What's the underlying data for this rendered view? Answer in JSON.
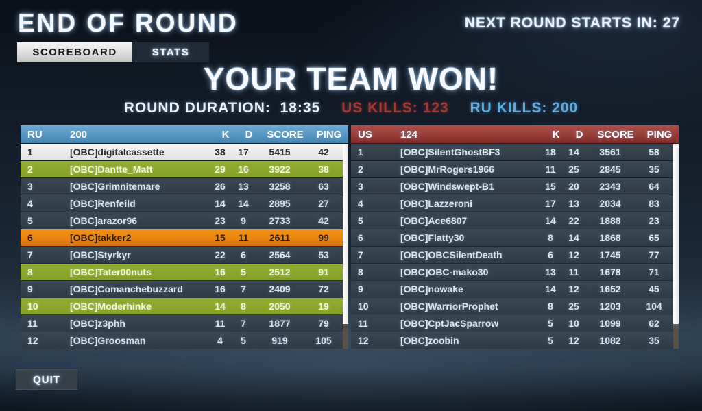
{
  "header": {
    "title": "END OF ROUND",
    "countdown_label": "NEXT ROUND STARTS IN:",
    "countdown_value": "27"
  },
  "tabs": [
    {
      "label": "SCOREBOARD",
      "active": true
    },
    {
      "label": "STATS",
      "active": false
    }
  ],
  "result": {
    "headline": "YOUR TEAM WON!",
    "duration_label": "ROUND DURATION:",
    "duration_value": "18:35",
    "us_kills_label": "US KILLS:",
    "us_kills_value": "123",
    "ru_kills_label": "RU KILLS:",
    "ru_kills_value": "200"
  },
  "colors": {
    "ru_accent": "#4f9acd",
    "ru_light": "#5cabdf",
    "us_accent": "#a33630",
    "green_row": "#94ac32",
    "orange_row": "#e8830f"
  },
  "tables": [
    {
      "team": "RU",
      "tickets": "200",
      "columns": [
        "K",
        "D",
        "SCORE",
        "PING"
      ],
      "rows": [
        {
          "rank": "1",
          "name": "[OBC]digitalcassette",
          "k": "38",
          "d": "17",
          "score": "5415",
          "ping": "42",
          "highlight": "white"
        },
        {
          "rank": "2",
          "name": "[OBC]Dantte_Matt",
          "k": "29",
          "d": "16",
          "score": "3922",
          "ping": "38",
          "highlight": "green"
        },
        {
          "rank": "3",
          "name": "[OBC]Grimnitemare",
          "k": "26",
          "d": "13",
          "score": "3258",
          "ping": "63",
          "highlight": "none"
        },
        {
          "rank": "4",
          "name": "[OBC]Renfeild",
          "k": "14",
          "d": "14",
          "score": "2895",
          "ping": "27",
          "highlight": "none"
        },
        {
          "rank": "5",
          "name": "[OBC]arazor96",
          "k": "23",
          "d": "9",
          "score": "2733",
          "ping": "42",
          "highlight": "none"
        },
        {
          "rank": "6",
          "name": "[OBC]takker2",
          "k": "15",
          "d": "11",
          "score": "2611",
          "ping": "99",
          "highlight": "orange"
        },
        {
          "rank": "7",
          "name": "[OBC]Styrkyr",
          "k": "22",
          "d": "6",
          "score": "2564",
          "ping": "53",
          "highlight": "none"
        },
        {
          "rank": "8",
          "name": "[OBC]Tater00nuts",
          "k": "16",
          "d": "5",
          "score": "2512",
          "ping": "91",
          "highlight": "green"
        },
        {
          "rank": "9",
          "name": "[OBC]Comanchebuzzard",
          "k": "16",
          "d": "7",
          "score": "2409",
          "ping": "72",
          "highlight": "none"
        },
        {
          "rank": "10",
          "name": "[OBC]Moderhinke",
          "k": "14",
          "d": "8",
          "score": "2050",
          "ping": "19",
          "highlight": "green"
        },
        {
          "rank": "11",
          "name": "[OBC]z3phh",
          "k": "11",
          "d": "7",
          "score": "1877",
          "ping": "79",
          "highlight": "none"
        },
        {
          "rank": "12",
          "name": "[OBC]Groosman",
          "k": "4",
          "d": "5",
          "score": "919",
          "ping": "105",
          "highlight": "none"
        }
      ]
    },
    {
      "team": "US",
      "tickets": "124",
      "columns": [
        "K",
        "D",
        "SCORE",
        "PING"
      ],
      "rows": [
        {
          "rank": "1",
          "name": "[OBC]SilentGhostBF3",
          "k": "18",
          "d": "14",
          "score": "3561",
          "ping": "58",
          "highlight": "none"
        },
        {
          "rank": "2",
          "name": "[OBC]MrRogers1966",
          "k": "11",
          "d": "25",
          "score": "2845",
          "ping": "35",
          "highlight": "none"
        },
        {
          "rank": "3",
          "name": "[OBC]Windswept-B1",
          "k": "15",
          "d": "20",
          "score": "2343",
          "ping": "64",
          "highlight": "none"
        },
        {
          "rank": "4",
          "name": "[OBC]Lazzeroni",
          "k": "17",
          "d": "13",
          "score": "2034",
          "ping": "83",
          "highlight": "none"
        },
        {
          "rank": "5",
          "name": "[OBC]Ace6807",
          "k": "14",
          "d": "22",
          "score": "1888",
          "ping": "23",
          "highlight": "none"
        },
        {
          "rank": "6",
          "name": "[OBC]Flatty30",
          "k": "8",
          "d": "14",
          "score": "1868",
          "ping": "65",
          "highlight": "none"
        },
        {
          "rank": "7",
          "name": "[OBC]OBCSilentDeath",
          "k": "6",
          "d": "12",
          "score": "1745",
          "ping": "77",
          "highlight": "none"
        },
        {
          "rank": "8",
          "name": "[OBC]OBC-mako30",
          "k": "13",
          "d": "11",
          "score": "1678",
          "ping": "71",
          "highlight": "none"
        },
        {
          "rank": "9",
          "name": "[OBC]nowake",
          "k": "14",
          "d": "12",
          "score": "1652",
          "ping": "45",
          "highlight": "none"
        },
        {
          "rank": "10",
          "name": "[OBC]WarriorProphet",
          "k": "8",
          "d": "25",
          "score": "1203",
          "ping": "104",
          "highlight": "none"
        },
        {
          "rank": "11",
          "name": "[OBC]CptJacSparrow",
          "k": "5",
          "d": "10",
          "score": "1099",
          "ping": "62",
          "highlight": "none"
        },
        {
          "rank": "12",
          "name": "[OBC]zoobin",
          "k": "5",
          "d": "12",
          "score": "1082",
          "ping": "35",
          "highlight": "none"
        }
      ]
    }
  ],
  "footer": {
    "quit_label": "QUIT"
  }
}
